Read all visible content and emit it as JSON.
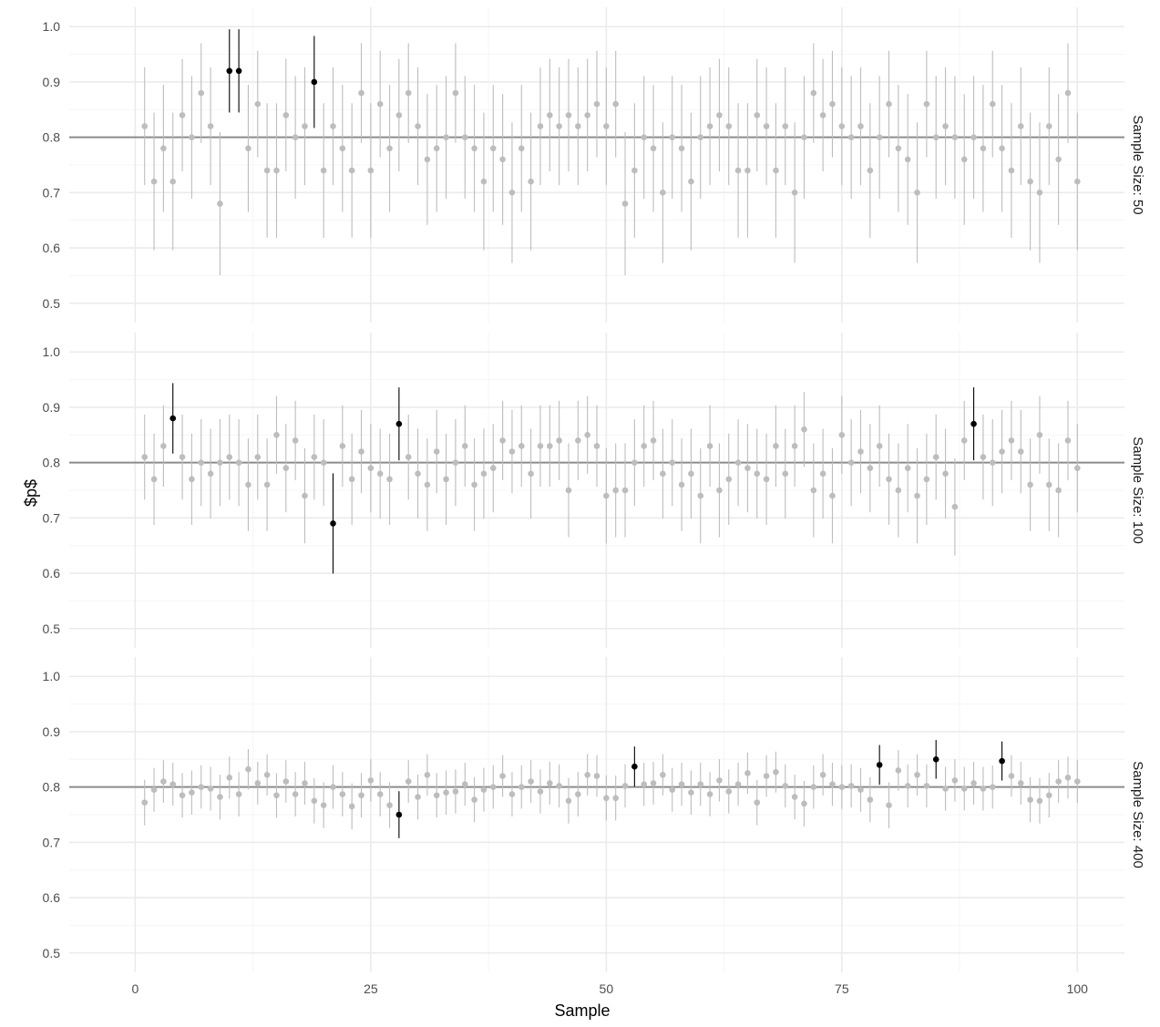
{
  "chart_data": {
    "type": "scatter",
    "description_kind": "faceted point-range plot (confidence intervals per sample)",
    "xlabel": "Sample",
    "ylabel": "$p$",
    "xlim": [
      -7,
      105
    ],
    "x_ticks": [
      0,
      25,
      50,
      75,
      100
    ],
    "y_ticks": [
      0.5,
      0.6,
      0.7,
      0.8,
      0.9,
      1.0
    ],
    "y_minor_ticks": [
      0.55,
      0.65,
      0.75,
      0.85,
      0.95
    ],
    "reference_line": 0.8,
    "grid": true,
    "colors": {
      "covers": "#bdbdbd",
      "misses": "#000000",
      "reference_line": "#8c8c8c",
      "grid_major": "#ebebeb",
      "grid_minor": "#f5f5f5"
    },
    "facets": [
      {
        "label": "Sample Size: 50",
        "n": 50,
        "ylim": [
          0.465,
          1.035
        ],
        "p_hat": [
          0.82,
          0.72,
          0.78,
          0.72,
          0.84,
          0.8,
          0.88,
          0.82,
          0.68,
          0.92,
          0.92,
          0.78,
          0.86,
          0.74,
          0.74,
          0.84,
          0.8,
          0.82,
          0.9,
          0.74,
          0.82,
          0.78,
          0.74,
          0.88,
          0.74,
          0.86,
          0.78,
          0.84,
          0.88,
          0.82,
          0.76,
          0.78,
          0.8,
          0.88,
          0.8,
          0.78,
          0.72,
          0.78,
          0.76,
          0.7,
          0.78,
          0.72,
          0.82,
          0.84,
          0.82,
          0.84,
          0.82,
          0.84,
          0.86,
          0.82,
          0.86,
          0.68,
          0.74,
          0.8,
          0.78,
          0.7,
          0.8,
          0.78,
          0.72,
          0.8,
          0.82,
          0.84,
          0.82,
          0.74,
          0.74,
          0.84,
          0.82,
          0.74,
          0.82,
          0.7,
          0.8,
          0.88,
          0.84,
          0.86,
          0.82,
          0.8,
          0.82,
          0.74,
          0.8,
          0.86,
          0.78,
          0.76,
          0.7,
          0.86,
          0.8,
          0.82,
          0.8,
          0.76,
          0.8,
          0.78,
          0.86,
          0.78,
          0.74,
          0.82,
          0.72,
          0.7,
          0.82,
          0.76,
          0.88,
          0.72
        ],
        "misses": [
          10,
          11,
          19
        ]
      },
      {
        "label": "Sample Size: 100",
        "n": 100,
        "ylim": [
          0.465,
          1.035
        ],
        "p_hat": [
          0.81,
          0.77,
          0.83,
          0.88,
          0.81,
          0.77,
          0.8,
          0.78,
          0.8,
          0.81,
          0.8,
          0.76,
          0.81,
          0.76,
          0.85,
          0.79,
          0.84,
          0.74,
          0.81,
          0.8,
          0.69,
          0.83,
          0.77,
          0.82,
          0.79,
          0.78,
          0.77,
          0.87,
          0.81,
          0.78,
          0.76,
          0.82,
          0.77,
          0.8,
          0.83,
          0.76,
          0.78,
          0.79,
          0.84,
          0.82,
          0.83,
          0.78,
          0.83,
          0.83,
          0.84,
          0.75,
          0.84,
          0.85,
          0.83,
          0.74,
          0.75,
          0.75,
          0.8,
          0.83,
          0.84,
          0.78,
          0.8,
          0.76,
          0.78,
          0.74,
          0.83,
          0.75,
          0.77,
          0.8,
          0.79,
          0.78,
          0.77,
          0.83,
          0.78,
          0.83,
          0.86,
          0.75,
          0.78,
          0.74,
          0.85,
          0.8,
          0.82,
          0.79,
          0.83,
          0.77,
          0.75,
          0.79,
          0.74,
          0.77,
          0.81,
          0.78,
          0.72,
          0.84,
          0.87,
          0.81,
          0.8,
          0.82,
          0.84,
          0.82,
          0.76,
          0.85,
          0.76,
          0.75,
          0.84,
          0.79
        ],
        "misses": [
          4,
          21,
          28,
          89
        ]
      },
      {
        "label": "Sample Size: 400",
        "n": 400,
        "ylim": [
          0.465,
          1.035
        ],
        "p_hat": [
          0.772,
          0.795,
          0.81,
          0.805,
          0.785,
          0.79,
          0.8,
          0.797,
          0.782,
          0.817,
          0.787,
          0.832,
          0.807,
          0.822,
          0.785,
          0.81,
          0.787,
          0.807,
          0.775,
          0.767,
          0.8,
          0.787,
          0.765,
          0.785,
          0.812,
          0.787,
          0.767,
          0.75,
          0.81,
          0.782,
          0.822,
          0.785,
          0.79,
          0.792,
          0.805,
          0.777,
          0.795,
          0.8,
          0.82,
          0.787,
          0.8,
          0.81,
          0.792,
          0.807,
          0.802,
          0.775,
          0.787,
          0.822,
          0.82,
          0.78,
          0.78,
          0.802,
          0.837,
          0.805,
          0.807,
          0.822,
          0.795,
          0.805,
          0.79,
          0.805,
          0.787,
          0.812,
          0.792,
          0.805,
          0.825,
          0.772,
          0.82,
          0.827,
          0.802,
          0.782,
          0.77,
          0.8,
          0.822,
          0.805,
          0.8,
          0.802,
          0.795,
          0.777,
          0.84,
          0.767,
          0.83,
          0.802,
          0.822,
          0.802,
          0.85,
          0.797,
          0.812,
          0.797,
          0.807,
          0.797,
          0.8,
          0.847,
          0.82,
          0.807,
          0.777,
          0.775,
          0.785,
          0.81,
          0.817,
          0.81
        ],
        "misses": [
          28,
          53,
          79,
          85,
          92
        ]
      }
    ]
  }
}
